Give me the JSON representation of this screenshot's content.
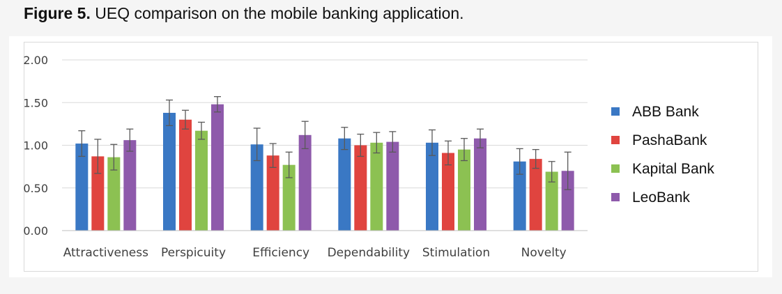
{
  "caption": {
    "figure_label": "Figure 5.",
    "text": " UEQ comparison on the mobile banking application."
  },
  "chart_data": {
    "type": "bar",
    "title": "",
    "xlabel": "",
    "ylabel": "",
    "ylim": [
      0,
      2
    ],
    "yticks": [
      "0.00",
      "0.50",
      "1.00",
      "1.50",
      "2.00"
    ],
    "grid": true,
    "legend_position": "right",
    "categories": [
      "Attractiveness",
      "Perspicuity",
      "Efficiency",
      "Dependability",
      "Stimulation",
      "Novelty"
    ],
    "series": [
      {
        "name": "ABB Bank",
        "color": "#3a78c4",
        "values": [
          1.02,
          1.38,
          1.01,
          1.08,
          1.03,
          0.81
        ],
        "errors": [
          0.15,
          0.15,
          0.19,
          0.13,
          0.15,
          0.15
        ]
      },
      {
        "name": "PashaBank",
        "color": "#e0443f",
        "values": [
          0.87,
          1.3,
          0.88,
          1.0,
          0.91,
          0.84
        ],
        "errors": [
          0.2,
          0.11,
          0.14,
          0.13,
          0.14,
          0.11
        ]
      },
      {
        "name": "Kapital Bank",
        "color": "#8cc152",
        "values": [
          0.86,
          1.17,
          0.77,
          1.03,
          0.95,
          0.69
        ],
        "errors": [
          0.15,
          0.1,
          0.15,
          0.12,
          0.13,
          0.12
        ]
      },
      {
        "name": "LeoBank",
        "color": "#8e5aab",
        "values": [
          1.06,
          1.48,
          1.12,
          1.04,
          1.08,
          0.7
        ],
        "errors": [
          0.13,
          0.09,
          0.16,
          0.12,
          0.11,
          0.22
        ]
      }
    ]
  }
}
